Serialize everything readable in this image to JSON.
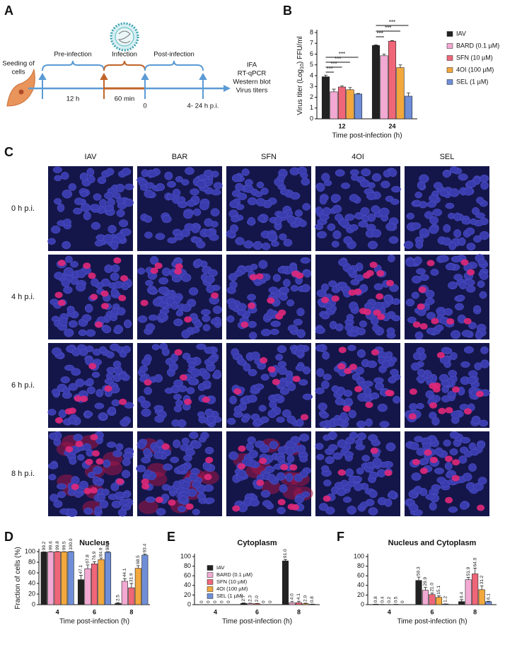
{
  "panel_labels": [
    "A",
    "B",
    "C",
    "D",
    "E",
    "F"
  ],
  "diagram": {
    "seeding": [
      "Seeding of",
      "cells"
    ],
    "phases": [
      "Pre-infection",
      "Infection",
      "Post-infection"
    ],
    "durations": [
      "12 h",
      "60 min",
      "0",
      "4- 24 h p.i."
    ],
    "readouts": [
      "IFA",
      "RT-qPCR",
      "Western blot",
      "Virus titers"
    ]
  },
  "images": {
    "columns": [
      "IAV",
      "BAR",
      "SFN",
      "4OI",
      "SEL"
    ],
    "rows": [
      "0 h p.i.",
      "4 h p.i.",
      "6 h p.i.",
      "8 h p.i."
    ]
  },
  "chart_data": [
    {
      "type": "bar",
      "ylabel": [
        "Virus titer (Log",
        "10",
        ") FFU/ml"
      ],
      "xlabel": "Time post-infection (h)",
      "categories": [
        "12",
        "24"
      ],
      "ylim": [
        0,
        8
      ],
      "yticks": [
        0,
        1,
        2,
        3,
        4,
        5,
        6,
        7,
        8
      ],
      "legend": "right",
      "annotations": [
        "***",
        "***",
        "***",
        "***",
        "***",
        "***",
        "***"
      ],
      "series": [
        {
          "name": "IAV",
          "color": "#222222",
          "values": [
            3.9,
            6.8
          ],
          "errors": [
            0.15,
            0.05
          ]
        },
        {
          "name": "BARD (0.1 µM)",
          "color": "#f2a9d2",
          "values": [
            2.5,
            5.85
          ],
          "errors": [
            0.25,
            0.15
          ]
        },
        {
          "name": "SFN (10 µM)",
          "color": "#ef6679",
          "values": [
            2.95,
            7.2
          ],
          "errors": [
            0.1,
            0.05
          ]
        },
        {
          "name": "4OI (100 µM)",
          "color": "#f2a83c",
          "values": [
            2.7,
            4.75
          ],
          "errors": [
            0.2,
            0.25
          ]
        },
        {
          "name": "SEL (1 µM)",
          "color": "#6f8ed8",
          "values": [
            2.3,
            2.1
          ],
          "errors": [
            0.05,
            0.3
          ]
        }
      ]
    },
    {
      "type": "bar",
      "title": "Nucleus",
      "ylabel": [
        "Fraction of cells (%)"
      ],
      "xlabel": "Time post-infection (h)",
      "categories": [
        "4",
        "6",
        "8"
      ],
      "ylim": [
        0,
        100
      ],
      "yticks": [
        0,
        20,
        40,
        60,
        80,
        100
      ],
      "series": [
        {
          "name": "IAV",
          "color": "#222222",
          "values": [
            99.2,
            47.1,
            2.5
          ],
          "errors": [
            0.5,
            8,
            1.5
          ],
          "value_labels": [
            "99.2",
            "47.1",
            "2.5"
          ]
        },
        {
          "name": "BARD (0.1 µM)",
          "color": "#f2a9d2",
          "values": [
            99.6,
            67.8,
            44.1
          ],
          "errors": [
            0.5,
            7,
            5
          ],
          "value_labels": [
            "99.6",
            "67.8",
            "44.1"
          ]
        },
        {
          "name": "SFN (10 µM)",
          "color": "#ef6679",
          "values": [
            99.8,
            76.9,
            31.9
          ],
          "errors": [
            0.5,
            4,
            8
          ],
          "value_labels": [
            "99.8",
            "76.9",
            "31.9"
          ]
        },
        {
          "name": "4OI (100 µM)",
          "color": "#f2a83c",
          "values": [
            99.5,
            84.9,
            68.5
          ],
          "errors": [
            0.5,
            3,
            5
          ],
          "value_labels": [
            "99.5",
            "84.9",
            "68.5"
          ]
        },
        {
          "name": "SEL (1 µM)",
          "color": "#6f8ed8",
          "values": [
            100,
            98.8,
            93.4
          ],
          "errors": [
            0.3,
            1,
            2
          ],
          "value_labels": [
            "100.0",
            "98.8",
            "93.4"
          ]
        }
      ]
    },
    {
      "type": "bar",
      "title": "Cytoplasm",
      "xlabel": "Time post-infection (h)",
      "categories": [
        "4",
        "6",
        "8"
      ],
      "ylim": [
        0,
        100
      ],
      "yticks": [
        0,
        20,
        40,
        60,
        80,
        100
      ],
      "legend": "upper left",
      "series": [
        {
          "name": "IAV",
          "color": "#222222",
          "values": [
            0,
            2.7,
            91.0
          ],
          "errors": [
            0,
            1,
            3
          ],
          "value_labels": [
            "0",
            "2.7",
            "91.0"
          ]
        },
        {
          "name": "BARD (0.1 µM)",
          "color": "#f2a9d2",
          "values": [
            0,
            2.3,
            4.0
          ],
          "errors": [
            0,
            0.8,
            3
          ],
          "value_labels": [
            "0",
            "2.3",
            "4.0"
          ]
        },
        {
          "name": "SFN (10 µM)",
          "color": "#ef6679",
          "values": [
            0,
            2.0,
            4.1
          ],
          "errors": [
            0,
            0.6,
            3
          ],
          "value_labels": [
            "0",
            "2.0",
            "4.1"
          ]
        },
        {
          "name": "4OI (100 µM)",
          "color": "#f2a83c",
          "values": [
            0,
            0,
            2.0
          ],
          "errors": [
            0,
            0,
            1
          ],
          "value_labels": [
            "0",
            "0",
            "2.0"
          ]
        },
        {
          "name": "SEL (1 µM)",
          "color": "#6f8ed8",
          "values": [
            0,
            0,
            0.8
          ],
          "errors": [
            0,
            0,
            0.5
          ],
          "value_labels": [
            "0",
            "0",
            "0.8"
          ]
        }
      ]
    },
    {
      "type": "bar",
      "title": "Nucleus and Cytoplasm",
      "xlabel": "Time post-infection (h)",
      "categories": [
        "4",
        "6",
        "8"
      ],
      "ylim": [
        0,
        100
      ],
      "yticks": [
        0,
        20,
        40,
        60,
        80,
        100
      ],
      "series": [
        {
          "name": "IAV",
          "color": "#222222",
          "values": [
            0.8,
            50.3,
            6.4
          ],
          "errors": [
            0.3,
            7,
            4
          ],
          "value_labels": [
            "0.8",
            "50.3",
            "6.4"
          ]
        },
        {
          "name": "BARD (0.1 µM)",
          "color": "#f2a9d2",
          "values": [
            0.4,
            29.9,
            51.9
          ],
          "errors": [
            0.2,
            6,
            5
          ],
          "value_labels": [
            "0.4",
            "29.9",
            "51.9"
          ]
        },
        {
          "name": "SFN (10 µM)",
          "color": "#ef6679",
          "values": [
            0.2,
            21.0,
            64.0
          ],
          "errors": [
            0.1,
            3,
            12
          ],
          "value_labels": [
            "0.2",
            "21.0",
            "64.0"
          ]
        },
        {
          "name": "4OI (100 µM)",
          "color": "#f2a83c",
          "values": [
            0.5,
            15.1,
            31.2
          ],
          "errors": [
            0.2,
            3,
            8
          ],
          "value_labels": [
            "0.5",
            "15.1",
            "31.2"
          ]
        },
        {
          "name": "SEL (1 µM)",
          "color": "#6f8ed8",
          "values": [
            0,
            1.2,
            6.1
          ],
          "errors": [
            0,
            0.5,
            1
          ],
          "value_labels": [
            "0",
            "1.2",
            "6.1"
          ]
        }
      ]
    }
  ]
}
